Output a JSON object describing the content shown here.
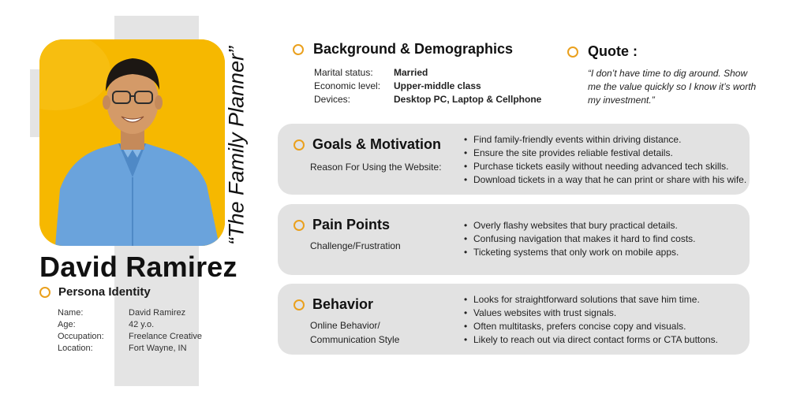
{
  "persona": {
    "name": "David Ramirez",
    "tagline": "“The Family Planner”",
    "identity": {
      "title": "Persona Identity",
      "rows": [
        {
          "label": "Name:",
          "value": "David Ramirez"
        },
        {
          "label": "Age:",
          "value": "42 y.o."
        },
        {
          "label": "Occupation:",
          "value": "Freelance Creative"
        },
        {
          "label": "Location:",
          "value": "Fort Wayne, IN"
        }
      ]
    }
  },
  "background": {
    "title": "Background & Demographics",
    "rows": [
      {
        "label": "Marital status:",
        "value": "Married"
      },
      {
        "label": "Economic level:",
        "value": "Upper-middle class"
      },
      {
        "label": "Devices:",
        "value": "Desktop PC, Laptop & Cellphone"
      }
    ]
  },
  "quote": {
    "title": "Quote :",
    "text": "“I don’t have time to dig around. Show me the value quickly so I know it’s worth my investment.”"
  },
  "goals": {
    "title": "Goals & Motivation",
    "subtitle": "Reason For Using the Website:",
    "items": [
      "Find family-friendly events within driving distance.",
      "Ensure the site provides reliable festival details.",
      "Purchase tickets easily without needing advanced tech skills.",
      "Download tickets in a way that he can print or share with his wife."
    ]
  },
  "pain": {
    "title": "Pain Points",
    "subtitle": "Challenge/Frustration",
    "items": [
      "Overly flashy websites that bury practical details.",
      "Confusing navigation that makes it hard to find costs.",
      "Ticketing systems that only work on mobile apps."
    ]
  },
  "behavior": {
    "title": "Behavior",
    "subtitle_line1": "Online Behavior/",
    "subtitle_line2": "Communication Style",
    "items": [
      "Looks for straightforward solutions that save him time.",
      "Values websites with trust signals.",
      "Often multitasks, prefers concise copy and visuals.",
      "Likely to reach out via direct contact forms or CTA buttons."
    ]
  },
  "colors": {
    "accent": "#eaa01d",
    "photo_bg": "#f6b800",
    "card_bg": "#e2e2e2"
  }
}
